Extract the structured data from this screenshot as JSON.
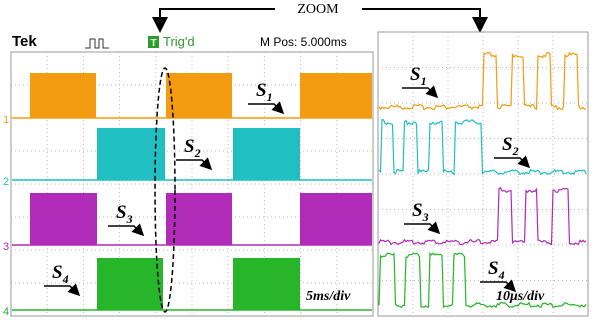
{
  "zoom_label": "ZOOM",
  "header": {
    "brand": "Tek",
    "trigger_icon": "T",
    "trigger_status": "Trig'd",
    "position": "M Pos: 5.000ms"
  },
  "left_panel": {
    "channels": [
      "1",
      "2",
      "3",
      "4"
    ],
    "signals": [
      {
        "name": "S",
        "index": "1"
      },
      {
        "name": "S",
        "index": "2"
      },
      {
        "name": "S",
        "index": "3"
      },
      {
        "name": "S",
        "index": "4"
      }
    ],
    "timebase": "5ms/div"
  },
  "right_panel": {
    "signals": [
      {
        "name": "S",
        "index": "1"
      },
      {
        "name": "S",
        "index": "2"
      },
      {
        "name": "S",
        "index": "3"
      },
      {
        "name": "S",
        "index": "4"
      }
    ],
    "timebase": "10μs/div"
  }
}
